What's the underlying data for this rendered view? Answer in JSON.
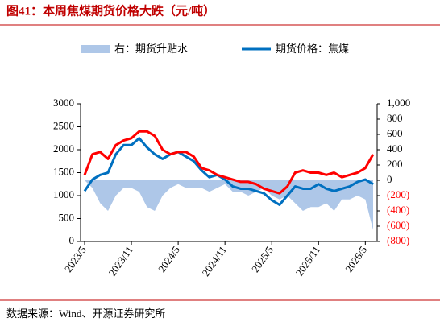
{
  "chart_data": {
    "type": "line",
    "title": "图41：本周焦煤期货价格大跌（元/吨）",
    "source": "数据来源：Wind、开源证券研究所",
    "categories": [
      "2023/5",
      null,
      null,
      null,
      null,
      null,
      "2023/11",
      null,
      null,
      null,
      null,
      null,
      "2024/5",
      null,
      null,
      null,
      null,
      null,
      "2024/11",
      null,
      null,
      null,
      null,
      null,
      "2025/5",
      null,
      null,
      null,
      null,
      null,
      "2025/11",
      null,
      null,
      null,
      null,
      null,
      "2026/5",
      null
    ],
    "series": [
      {
        "name": "右：期货升贴水",
        "type": "area",
        "axis": "y2",
        "color": "#aec7e8",
        "values": [
          0,
          -100,
          -300,
          -400,
          -200,
          -100,
          -100,
          -150,
          -350,
          -400,
          -200,
          -100,
          -50,
          -100,
          -100,
          -100,
          -150,
          -100,
          -50,
          -150,
          -150,
          -200,
          -150,
          -100,
          -200,
          -250,
          -200,
          -300,
          -400,
          -350,
          -350,
          -300,
          -400,
          -250,
          -250,
          -200,
          -250,
          -650
        ]
      },
      {
        "name": "期货价格：焦煤",
        "type": "line",
        "color": "#0070c0",
        "values": [
          1100,
          1350,
          1450,
          1500,
          1900,
          2100,
          2100,
          2250,
          2050,
          1900,
          1800,
          1900,
          1950,
          1850,
          1750,
          1550,
          1400,
          1450,
          1350,
          1200,
          1150,
          1150,
          1100,
          1050,
          900,
          800,
          1000,
          1200,
          1150,
          1150,
          1250,
          1150,
          1100,
          1150,
          1200,
          1300,
          1350,
          1250
        ]
      },
      {
        "type": "line",
        "color": "#ff0000",
        "values": [
          1450,
          1900,
          1950,
          1800,
          2100,
          2200,
          2250,
          2400,
          2400,
          2300,
          2000,
          1900,
          1950,
          1950,
          1850,
          1600,
          1550,
          1450,
          1400,
          1350,
          1300,
          1300,
          1250,
          1150,
          1100,
          1050,
          1200,
          1500,
          1550,
          1500,
          1500,
          1450,
          1500,
          1400,
          1450,
          1500,
          1600,
          1900
        ]
      }
    ],
    "ylim": [
      0,
      3000
    ],
    "yticks": [
      0,
      500,
      1000,
      1500,
      2000,
      2500,
      3000
    ],
    "y2lim": [
      -800,
      1000
    ],
    "y2ticks": [
      {
        "value": -800,
        "label": "(800)"
      },
      {
        "value": -600,
        "label": "(600)"
      },
      {
        "value": -400,
        "label": "(400)"
      },
      {
        "value": -200,
        "label": "(200)"
      },
      0,
      200,
      400,
      600,
      800,
      {
        "value": 1000,
        "label": "1,000"
      }
    ],
    "y2_negative_color": "#ff0000",
    "grid": false
  }
}
